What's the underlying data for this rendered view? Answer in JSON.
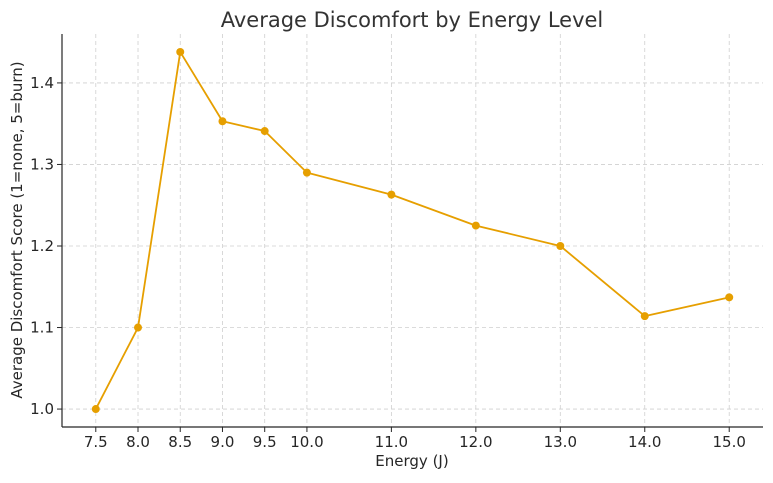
{
  "chart_data": {
    "type": "line",
    "title": "Average Discomfort by Energy Level",
    "xlabel": "Energy (J)",
    "ylabel": "Average Discomfort Score (1=none, 5=burn)",
    "x_ticks": [
      7.5,
      8.0,
      8.5,
      9.0,
      9.5,
      10.0,
      11.0,
      12.0,
      13.0,
      14.0,
      15.0
    ],
    "x_tick_labels": [
      "7.5",
      "8.0",
      "8.5",
      "9.0",
      "9.5",
      "10.0",
      "11.0",
      "12.0",
      "13.0",
      "14.0",
      "15.0"
    ],
    "y_ticks": [
      1.0,
      1.1,
      1.2,
      1.3,
      1.4
    ],
    "y_tick_labels": [
      "1.0",
      "1.1",
      "1.2",
      "1.3",
      "1.4"
    ],
    "xlim": [
      7.1,
      15.4
    ],
    "ylim": [
      0.978,
      1.46
    ],
    "grid": true,
    "series": [
      {
        "color": "#e69f00",
        "marker": "circle",
        "x": [
          7.5,
          8.0,
          8.5,
          9.0,
          9.5,
          10.0,
          11.0,
          12.0,
          13.0,
          14.0,
          15.0
        ],
        "y": [
          1.0,
          1.1,
          1.438,
          1.353,
          1.341,
          1.29,
          1.263,
          1.225,
          1.2,
          1.114,
          1.137
        ]
      }
    ]
  }
}
